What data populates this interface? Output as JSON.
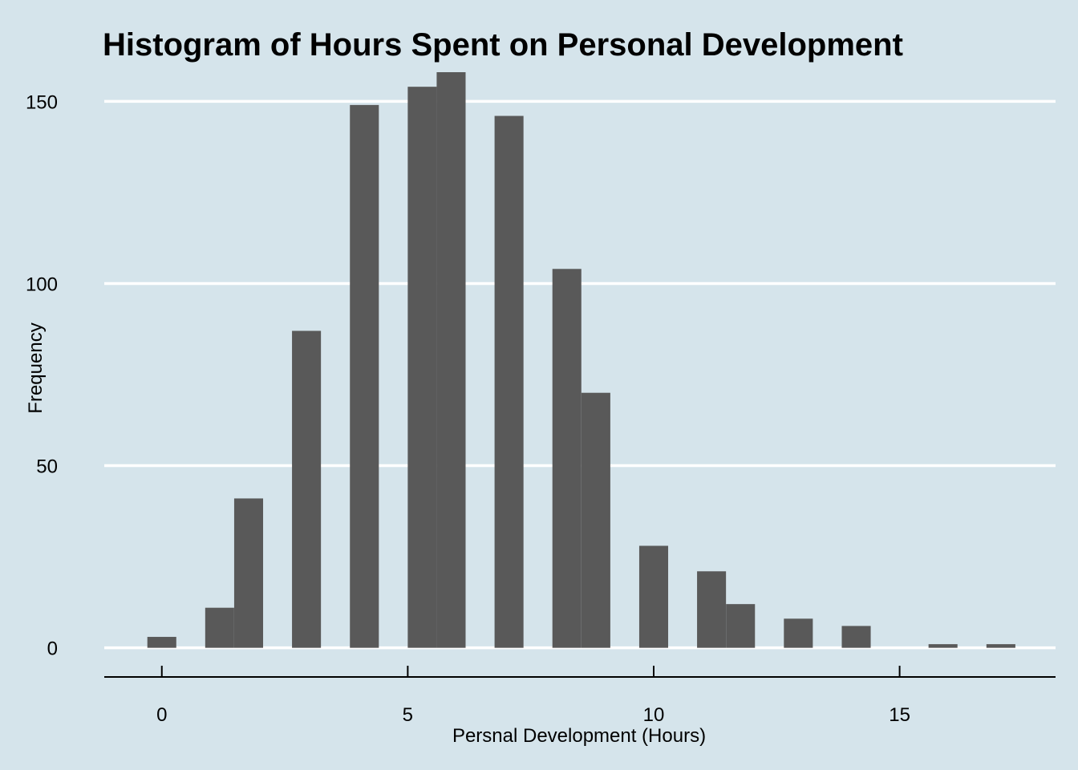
{
  "chart_data": {
    "type": "bar",
    "title": "Histogram of Hours Spent on Personal Development",
    "xlabel": "Persnal Development (Hours)",
    "ylabel": "Frequency",
    "x_ticks": [
      0,
      5,
      10,
      15
    ],
    "y_ticks": [
      0,
      50,
      100,
      150
    ],
    "xlim": [
      -1.17,
      18.17
    ],
    "ylim": [
      -8,
      158
    ],
    "bin_width": 0.5882,
    "bins": [
      {
        "x": 0.0,
        "value": 3
      },
      {
        "x": 1.176,
        "value": 11
      },
      {
        "x": 1.765,
        "value": 41
      },
      {
        "x": 2.941,
        "value": 87
      },
      {
        "x": 4.118,
        "value": 149
      },
      {
        "x": 5.294,
        "value": 154
      },
      {
        "x": 5.882,
        "value": 158
      },
      {
        "x": 7.059,
        "value": 146
      },
      {
        "x": 8.235,
        "value": 104
      },
      {
        "x": 8.824,
        "value": 70
      },
      {
        "x": 10.0,
        "value": 28
      },
      {
        "x": 11.176,
        "value": 21
      },
      {
        "x": 11.765,
        "value": 12
      },
      {
        "x": 12.941,
        "value": 8
      },
      {
        "x": 14.118,
        "value": 6
      },
      {
        "x": 15.882,
        "value": 1
      },
      {
        "x": 17.059,
        "value": 1
      }
    ],
    "bar_color": "#595959",
    "background_color": "#d5e4eb",
    "grid": "horizontal",
    "grid_color": "#ffffff"
  }
}
